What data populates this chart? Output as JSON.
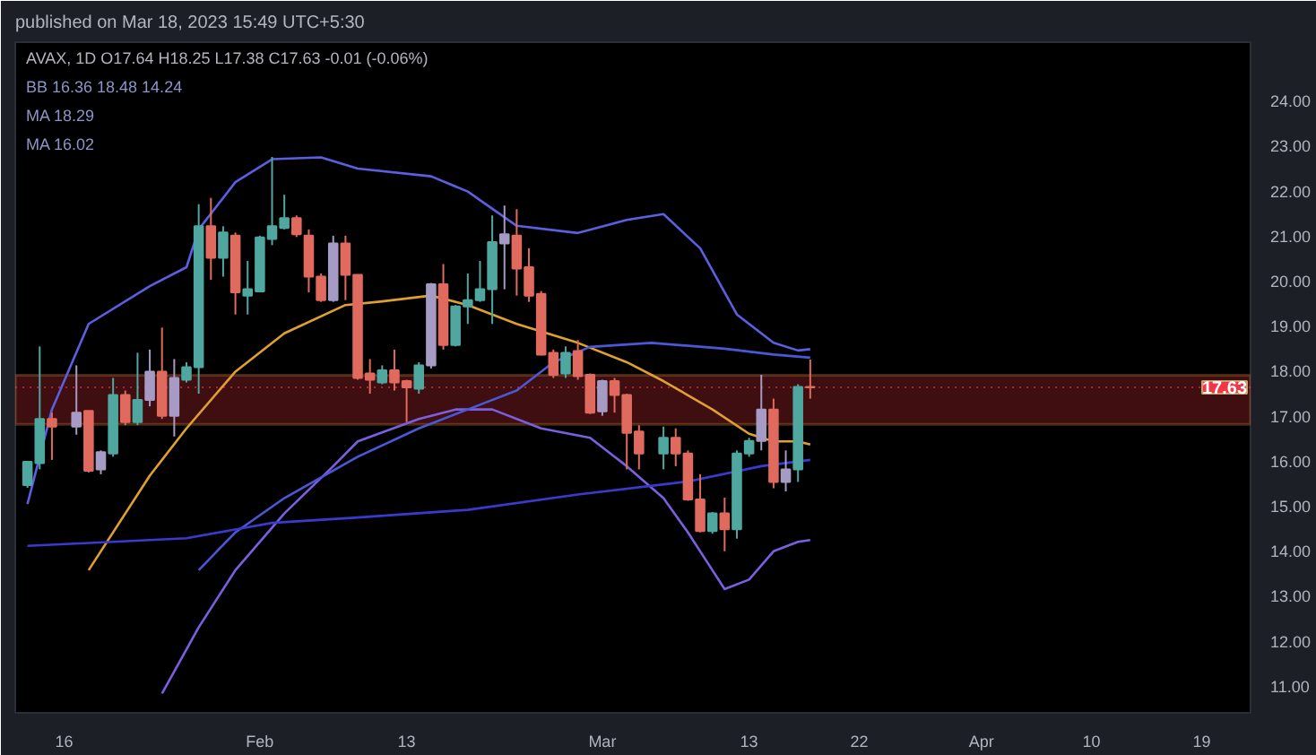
{
  "chart_data": {
    "type": "candlestick",
    "title": "published on Mar 18, 2023 15:49 UTC+5:30",
    "subtitle": "AVAX, 1D  O17.64 H18.25 L17.38 C17.63 -0.01 (-0.06%)",
    "annotations": [
      "BB 16.36 18.48 14.24",
      "MA 18.29",
      "MA 16.02"
    ],
    "x": [
      "2023-01-13",
      "2023-01-14",
      "2023-01-15",
      "2023-01-17",
      "2023-01-18",
      "2023-01-19",
      "2023-01-20",
      "2023-01-21",
      "2023-01-22",
      "2023-01-23",
      "2023-01-24",
      "2023-01-25",
      "2023-01-26",
      "2023-01-27",
      "2023-01-28",
      "2023-01-29",
      "2023-01-30",
      "2023-01-31",
      "2023-02-01",
      "2023-02-02",
      "2023-02-03",
      "2023-02-04",
      "2023-02-05",
      "2023-02-06",
      "2023-02-07",
      "2023-02-08",
      "2023-02-09",
      "2023-02-10",
      "2023-02-11",
      "2023-02-12",
      "2023-02-13",
      "2023-02-14",
      "2023-02-15",
      "2023-02-16",
      "2023-02-17",
      "2023-02-18",
      "2023-02-19",
      "2023-02-20",
      "2023-02-21",
      "2023-02-22",
      "2023-02-23",
      "2023-02-24",
      "2023-02-25",
      "2023-02-26",
      "2023-02-27",
      "2023-02-28",
      "2023-03-01",
      "2023-03-02",
      "2023-03-03",
      "2023-03-04",
      "2023-03-06",
      "2023-03-07",
      "2023-03-08",
      "2023-03-09",
      "2023-03-10",
      "2023-03-11",
      "2023-03-12",
      "2023-03-13",
      "2023-03-14",
      "2023-03-15",
      "2023-03-16",
      "2023-03-17",
      "2023-03-18"
    ],
    "ohlc": [
      [
        15.46,
        15.98,
        15.4,
        15.98
      ],
      [
        15.95,
        18.54,
        15.81,
        16.93
      ],
      [
        16.93,
        17.07,
        16.02,
        16.76
      ],
      [
        16.76,
        18.12,
        16.58,
        17.07
      ],
      [
        17.11,
        17.11,
        15.74,
        15.78
      ],
      [
        15.81,
        16.23,
        15.7,
        16.19
      ],
      [
        16.16,
        17.84,
        16.09,
        17.46
      ],
      [
        17.46,
        17.56,
        16.79,
        16.86
      ],
      [
        16.86,
        18.4,
        16.79,
        17.35
      ],
      [
        17.35,
        18.47,
        17.21,
        17.98
      ],
      [
        17.98,
        18.96,
        16.93,
        17.0
      ],
      [
        17.0,
        18.26,
        16.54,
        17.84
      ],
      [
        17.8,
        18.19,
        17.74,
        18.08
      ],
      [
        18.08,
        21.7,
        17.49,
        21.21
      ],
      [
        21.21,
        21.84,
        20.02,
        20.51
      ],
      [
        20.51,
        21.21,
        20.09,
        21.07
      ],
      [
        21.0,
        21.07,
        19.25,
        19.74
      ],
      [
        19.67,
        20.44,
        19.25,
        19.81
      ],
      [
        19.76,
        21.0,
        19.74,
        20.96
      ],
      [
        20.93,
        22.75,
        20.79,
        21.21
      ],
      [
        21.17,
        21.91,
        21.14,
        21.39
      ],
      [
        21.39,
        21.45,
        20.97,
        21.03
      ],
      [
        21.0,
        21.14,
        19.74,
        20.09
      ],
      [
        20.09,
        20.16,
        19.53,
        19.57
      ],
      [
        19.57,
        21.0,
        19.53,
        20.83
      ],
      [
        20.83,
        21.0,
        19.57,
        20.13
      ],
      [
        20.13,
        20.13,
        17.8,
        17.84
      ],
      [
        17.94,
        18.26,
        17.49,
        17.8
      ],
      [
        17.74,
        18.12,
        17.7,
        18.01
      ],
      [
        18.01,
        18.47,
        17.56,
        17.74
      ],
      [
        17.77,
        17.8,
        16.86,
        17.63
      ],
      [
        17.6,
        18.19,
        17.49,
        18.12
      ],
      [
        18.12,
        19.95,
        18.05,
        19.92
      ],
      [
        19.92,
        20.37,
        18.47,
        18.57
      ],
      [
        18.57,
        19.46,
        18.54,
        19.43
      ],
      [
        19.43,
        20.16,
        19.04,
        19.57
      ],
      [
        19.57,
        20.44,
        19.53,
        19.81
      ],
      [
        19.81,
        21.45,
        19.04,
        20.86
      ],
      [
        20.83,
        21.67,
        19.81,
        21.03
      ],
      [
        21.0,
        21.59,
        19.67,
        20.27
      ],
      [
        20.3,
        20.72,
        19.53,
        19.67
      ],
      [
        19.71,
        19.77,
        18.34,
        18.36
      ],
      [
        18.4,
        18.47,
        17.84,
        17.91
      ],
      [
        17.94,
        18.54,
        17.84,
        18.4
      ],
      [
        18.44,
        18.68,
        17.8,
        17.88
      ],
      [
        17.91,
        17.94,
        17.04,
        17.07
      ],
      [
        17.1,
        17.8,
        17.0,
        17.77
      ],
      [
        17.77,
        17.84,
        17.07,
        17.46
      ],
      [
        17.46,
        17.49,
        15.81,
        16.62
      ],
      [
        16.65,
        16.79,
        15.81,
        16.16
      ],
      [
        16.16,
        16.76,
        15.81,
        16.51
      ],
      [
        16.51,
        16.72,
        15.88,
        16.16
      ],
      [
        16.16,
        16.23,
        15.11,
        15.14
      ],
      [
        15.14,
        15.7,
        14.41,
        14.44
      ],
      [
        14.44,
        14.86,
        14.38,
        14.83
      ],
      [
        14.83,
        15.18,
        13.99,
        14.48
      ],
      [
        14.48,
        16.23,
        14.27,
        16.16
      ],
      [
        16.16,
        16.51,
        16.09,
        16.44
      ],
      [
        16.44,
        17.91,
        16.23,
        17.14
      ],
      [
        17.14,
        17.38,
        15.39,
        15.53
      ],
      [
        15.53,
        16.23,
        15.32,
        15.81
      ],
      [
        15.81,
        17.7,
        15.53,
        17.64
      ],
      [
        17.64,
        18.25,
        17.38,
        17.63
      ]
    ],
    "colors": [
      "#4fa7a0",
      "#4fa7a0",
      "#e06a5e",
      "#a59bc4",
      "#e06a5e",
      "#a59bc4",
      "#4fa7a0",
      "#e06a5e",
      "#4fa7a0",
      "#a59bc4",
      "#e06a5e",
      "#a59bc4",
      "#4fa7a0",
      "#4fa7a0",
      "#e06a5e",
      "#4fa7a0",
      "#e06a5e",
      "#4fa7a0",
      "#4fa7a0",
      "#4fa7a0",
      "#4fa7a0",
      "#e06a5e",
      "#e06a5e",
      "#e06a5e",
      "#a59bc4",
      "#e06a5e",
      "#e06a5e",
      "#e06a5e",
      "#4fa7a0",
      "#e06a5e",
      "#e06a5e",
      "#4fa7a0",
      "#a59bc4",
      "#e06a5e",
      "#4fa7a0",
      "#4fa7a0",
      "#4fa7a0",
      "#4fa7a0",
      "#a59bc4",
      "#e06a5e",
      "#e06a5e",
      "#e06a5e",
      "#e06a5e",
      "#4fa7a0",
      "#e06a5e",
      "#e06a5e",
      "#a59bc4",
      "#e06a5e",
      "#e06a5e",
      "#e06a5e",
      "#4fa7a0",
      "#e06a5e",
      "#e06a5e",
      "#e06a5e",
      "#4fa7a0",
      "#e06a5e",
      "#4fa7a0",
      "#4fa7a0",
      "#a59bc4",
      "#e06a5e",
      "#a59bc4",
      "#4fa7a0",
      "#e06a5e"
    ],
    "series": [
      {
        "type": "line",
        "color": "#5b5fe0",
        "x": [
          "2023-01-13",
          "2023-01-15",
          "2023-01-18",
          "2023-01-23",
          "2023-01-26",
          "2023-01-27",
          "2023-01-30",
          "2023-02-02",
          "2023-02-06",
          "2023-02-09",
          "2023-02-15",
          "2023-02-18",
          "2023-02-22",
          "2023-02-27",
          "2023-03-03",
          "2023-03-06",
          "2023-03-09",
          "2023-03-12",
          "2023-03-15",
          "2023-03-17",
          "2023-03-18"
        ],
        "values": [
          15.04,
          17.14,
          19.04,
          19.88,
          20.3,
          21.14,
          22.19,
          22.7,
          22.74,
          22.49,
          22.32,
          21.98,
          21.22,
          21.06,
          21.35,
          21.48,
          20.72,
          19.25,
          18.62,
          18.45,
          18.48
        ]
      },
      {
        "type": "line",
        "color": "#7b5fe0",
        "x": [
          "2023-01-24",
          "2023-01-27",
          "2023-01-30",
          "2023-02-03",
          "2023-02-07",
          "2023-02-09",
          "2023-02-14",
          "2023-02-17",
          "2023-02-20",
          "2023-02-24",
          "2023-02-28",
          "2023-03-03",
          "2023-03-06",
          "2023-03-08",
          "2023-03-10",
          "2023-03-11",
          "2023-03-13",
          "2023-03-15",
          "2023-03-17",
          "2023-03-18"
        ],
        "values": [
          10.83,
          12.3,
          13.57,
          14.83,
          15.88,
          16.43,
          16.93,
          17.14,
          17.14,
          16.72,
          16.51,
          15.88,
          15.17,
          14.41,
          13.57,
          13.15,
          13.36,
          13.99,
          14.2,
          14.24
        ]
      },
      {
        "type": "line",
        "color": "#e0a030",
        "x": [
          "2023-01-18",
          "2023-01-23",
          "2023-01-26",
          "2023-01-30",
          "2023-02-03",
          "2023-02-08",
          "2023-02-11",
          "2023-02-15",
          "2023-02-18",
          "2023-02-22",
          "2023-02-27",
          "2023-03-03",
          "2023-03-06",
          "2023-03-10",
          "2023-03-13",
          "2023-03-15",
          "2023-03-17",
          "2023-03-18"
        ],
        "values": [
          13.57,
          15.67,
          16.72,
          17.98,
          18.83,
          19.46,
          19.54,
          19.67,
          19.46,
          19.04,
          18.62,
          18.19,
          17.77,
          17.14,
          16.6,
          16.43,
          16.43,
          16.36
        ]
      },
      {
        "type": "line",
        "color": "#4a58d8",
        "x": [
          "2023-01-27",
          "2023-01-30",
          "2023-02-03",
          "2023-02-09",
          "2023-02-14",
          "2023-02-18",
          "2023-02-22",
          "2023-02-25",
          "2023-02-28",
          "2023-03-05",
          "2023-03-11",
          "2023-03-15",
          "2023-03-18"
        ],
        "values": [
          13.57,
          14.41,
          15.17,
          16.09,
          16.72,
          17.14,
          17.56,
          18.19,
          18.53,
          18.62,
          18.49,
          18.36,
          18.29
        ]
      },
      {
        "type": "line",
        "color": "#3a3ad0",
        "x": [
          "2023-01-13",
          "2023-01-20",
          "2023-01-26",
          "2023-02-02",
          "2023-02-09",
          "2023-02-18",
          "2023-02-27",
          "2023-03-08",
          "2023-03-14",
          "2023-03-18"
        ],
        "values": [
          14.11,
          14.2,
          14.28,
          14.62,
          14.74,
          14.91,
          15.25,
          15.54,
          15.88,
          16.02
        ]
      }
    ],
    "bands": [
      {
        "axis": "y",
        "from": 16.81,
        "to": 17.9,
        "color": "#8b1e24"
      }
    ],
    "ref_lines": [
      {
        "axis": "y",
        "value": 17.63,
        "label": "17.63",
        "color": "#f23645",
        "line_style": "dotted"
      }
    ],
    "xlim": [
      "2023-01-12",
      "2023-04-23"
    ],
    "xticks": [
      {
        "value": "2023-01-16",
        "label": "16"
      },
      {
        "value": "2023-02-01",
        "label": "Feb"
      },
      {
        "value": "2023-02-13",
        "label": "13"
      },
      {
        "value": "2023-03-01",
        "label": "Mar"
      },
      {
        "value": "2023-03-13",
        "label": "13"
      },
      {
        "value": "2023-03-22",
        "label": "22"
      },
      {
        "value": "2023-04-01",
        "label": "Apr"
      },
      {
        "value": "2023-04-10",
        "label": "10"
      },
      {
        "value": "2023-04-19",
        "label": "19"
      }
    ],
    "ylim": [
      10.4,
      25.3
    ],
    "yticks": [
      {
        "value": 11,
        "label": "11.00"
      },
      {
        "value": 12,
        "label": "12.00"
      },
      {
        "value": 13,
        "label": "13.00"
      },
      {
        "value": 14,
        "label": "14.00"
      },
      {
        "value": 15,
        "label": "15.00"
      },
      {
        "value": 16,
        "label": "16.00"
      },
      {
        "value": 17,
        "label": "17.00"
      },
      {
        "value": 18,
        "label": "18.00"
      },
      {
        "value": 19,
        "label": "19.00"
      },
      {
        "value": 20,
        "label": "20.00"
      },
      {
        "value": 21,
        "label": "21.00"
      },
      {
        "value": 22,
        "label": "22.00"
      },
      {
        "value": 23,
        "label": "23.00"
      },
      {
        "value": 24,
        "label": "24.00"
      }
    ]
  }
}
